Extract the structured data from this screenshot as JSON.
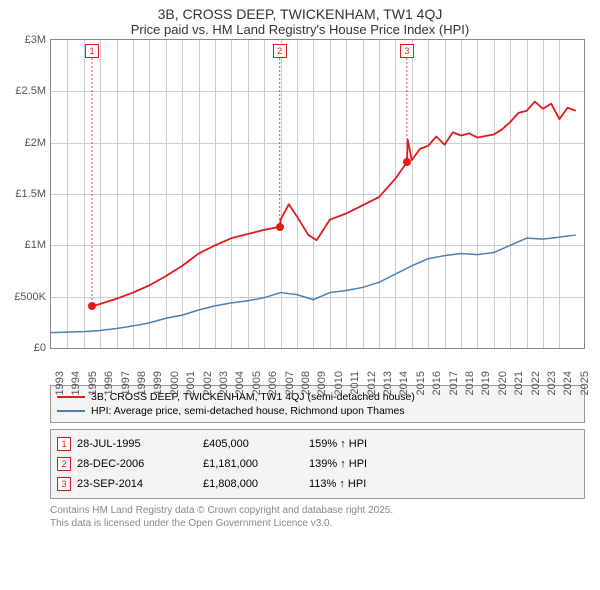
{
  "title": {
    "line1": "3B, CROSS DEEP, TWICKENHAM, TW1 4QJ",
    "line2": "Price paid vs. HM Land Registry's House Price Index (HPI)"
  },
  "chart": {
    "type": "line",
    "background_color": "#ffffff",
    "grid_color": "#cccccc",
    "axis_color": "#888888",
    "text_color": "#555555",
    "title_fontsize": 14,
    "subtitle_fontsize": 13,
    "label_fontsize": 11,
    "x_years": [
      1993,
      1994,
      1995,
      1996,
      1997,
      1998,
      1999,
      2000,
      2001,
      2002,
      2003,
      2004,
      2005,
      2006,
      2007,
      2008,
      2009,
      2010,
      2011,
      2012,
      2013,
      2014,
      2015,
      2016,
      2017,
      2018,
      2019,
      2020,
      2021,
      2022,
      2023,
      2024,
      2025
    ],
    "y_ticks": [
      0,
      500000,
      1000000,
      1500000,
      2000000,
      2500000,
      3000000
    ],
    "y_tick_labels": [
      "£0",
      "£500K",
      "£1M",
      "£1.5M",
      "£2M",
      "£2.5M",
      "£3M"
    ],
    "xlim": [
      1993,
      2025.5
    ],
    "ylim": [
      0,
      3000000
    ],
    "series": [
      {
        "name": "3B, CROSS DEEP, TWICKENHAM, TW1 4QJ (semi-detached house)",
        "color": "#e31a1c",
        "line_width": 1.8,
        "data": [
          [
            1995.5,
            405000
          ],
          [
            1996,
            430000
          ],
          [
            1997,
            480000
          ],
          [
            1998,
            540000
          ],
          [
            1999,
            610000
          ],
          [
            2000,
            700000
          ],
          [
            2001,
            800000
          ],
          [
            2002,
            920000
          ],
          [
            2003,
            1000000
          ],
          [
            2004,
            1070000
          ],
          [
            2005,
            1110000
          ],
          [
            2006,
            1150000
          ],
          [
            2006.95,
            1181000
          ],
          [
            2007,
            1250000
          ],
          [
            2007.5,
            1400000
          ],
          [
            2008,
            1280000
          ],
          [
            2008.7,
            1100000
          ],
          [
            2009.2,
            1050000
          ],
          [
            2010,
            1250000
          ],
          [
            2011,
            1310000
          ],
          [
            2012,
            1390000
          ],
          [
            2013,
            1470000
          ],
          [
            2014,
            1650000
          ],
          [
            2014.7,
            1808000
          ],
          [
            2014.75,
            2030000
          ],
          [
            2015,
            1830000
          ],
          [
            2015.5,
            1940000
          ],
          [
            2016,
            1970000
          ],
          [
            2016.5,
            2060000
          ],
          [
            2017,
            1980000
          ],
          [
            2017.5,
            2100000
          ],
          [
            2018,
            2070000
          ],
          [
            2018.5,
            2090000
          ],
          [
            2019,
            2050000
          ],
          [
            2020,
            2080000
          ],
          [
            2020.5,
            2130000
          ],
          [
            2021,
            2200000
          ],
          [
            2021.5,
            2290000
          ],
          [
            2022,
            2310000
          ],
          [
            2022.5,
            2400000
          ],
          [
            2023,
            2330000
          ],
          [
            2023.5,
            2380000
          ],
          [
            2024,
            2230000
          ],
          [
            2024.5,
            2340000
          ],
          [
            2025,
            2310000
          ]
        ],
        "markers": [
          {
            "id": "1",
            "x": 1995.5,
            "y": 405000
          },
          {
            "id": "2",
            "x": 2006.95,
            "y": 1181000
          },
          {
            "id": "3",
            "x": 2014.7,
            "y": 1808000
          }
        ]
      },
      {
        "name": "HPI: Average price, semi-detached house, Richmond upon Thames",
        "color": "#4a7fb8",
        "line_width": 1.5,
        "data": [
          [
            1993,
            150000
          ],
          [
            1994,
            155000
          ],
          [
            1995,
            160000
          ],
          [
            1996,
            170000
          ],
          [
            1997,
            190000
          ],
          [
            1998,
            215000
          ],
          [
            1999,
            245000
          ],
          [
            2000,
            290000
          ],
          [
            2001,
            320000
          ],
          [
            2002,
            370000
          ],
          [
            2003,
            410000
          ],
          [
            2004,
            440000
          ],
          [
            2005,
            460000
          ],
          [
            2006,
            490000
          ],
          [
            2007,
            540000
          ],
          [
            2008,
            520000
          ],
          [
            2009,
            470000
          ],
          [
            2010,
            540000
          ],
          [
            2011,
            560000
          ],
          [
            2012,
            590000
          ],
          [
            2013,
            640000
          ],
          [
            2014,
            720000
          ],
          [
            2015,
            800000
          ],
          [
            2016,
            870000
          ],
          [
            2017,
            900000
          ],
          [
            2018,
            920000
          ],
          [
            2019,
            910000
          ],
          [
            2020,
            930000
          ],
          [
            2021,
            1000000
          ],
          [
            2022,
            1070000
          ],
          [
            2023,
            1060000
          ],
          [
            2024,
            1080000
          ],
          [
            2025,
            1100000
          ]
        ]
      }
    ]
  },
  "legend": {
    "series1_label": "3B, CROSS DEEP, TWICKENHAM, TW1 4QJ (semi-detached house)",
    "series2_label": "HPI: Average price, semi-detached house, Richmond upon Thames",
    "series1_color": "#e31a1c",
    "series2_color": "#4a7fb8"
  },
  "transactions": [
    {
      "id": "1",
      "date": "28-JUL-1995",
      "price": "£405,000",
      "hpi": "159% ↑ HPI"
    },
    {
      "id": "2",
      "date": "28-DEC-2006",
      "price": "£1,181,000",
      "hpi": "139% ↑ HPI"
    },
    {
      "id": "3",
      "date": "23-SEP-2014",
      "price": "£1,808,000",
      "hpi": "113% ↑ HPI"
    }
  ],
  "footnote": {
    "line1": "Contains HM Land Registry data © Crown copyright and database right 2025.",
    "line2": "This data is licensed under the Open Government Licence v3.0."
  }
}
